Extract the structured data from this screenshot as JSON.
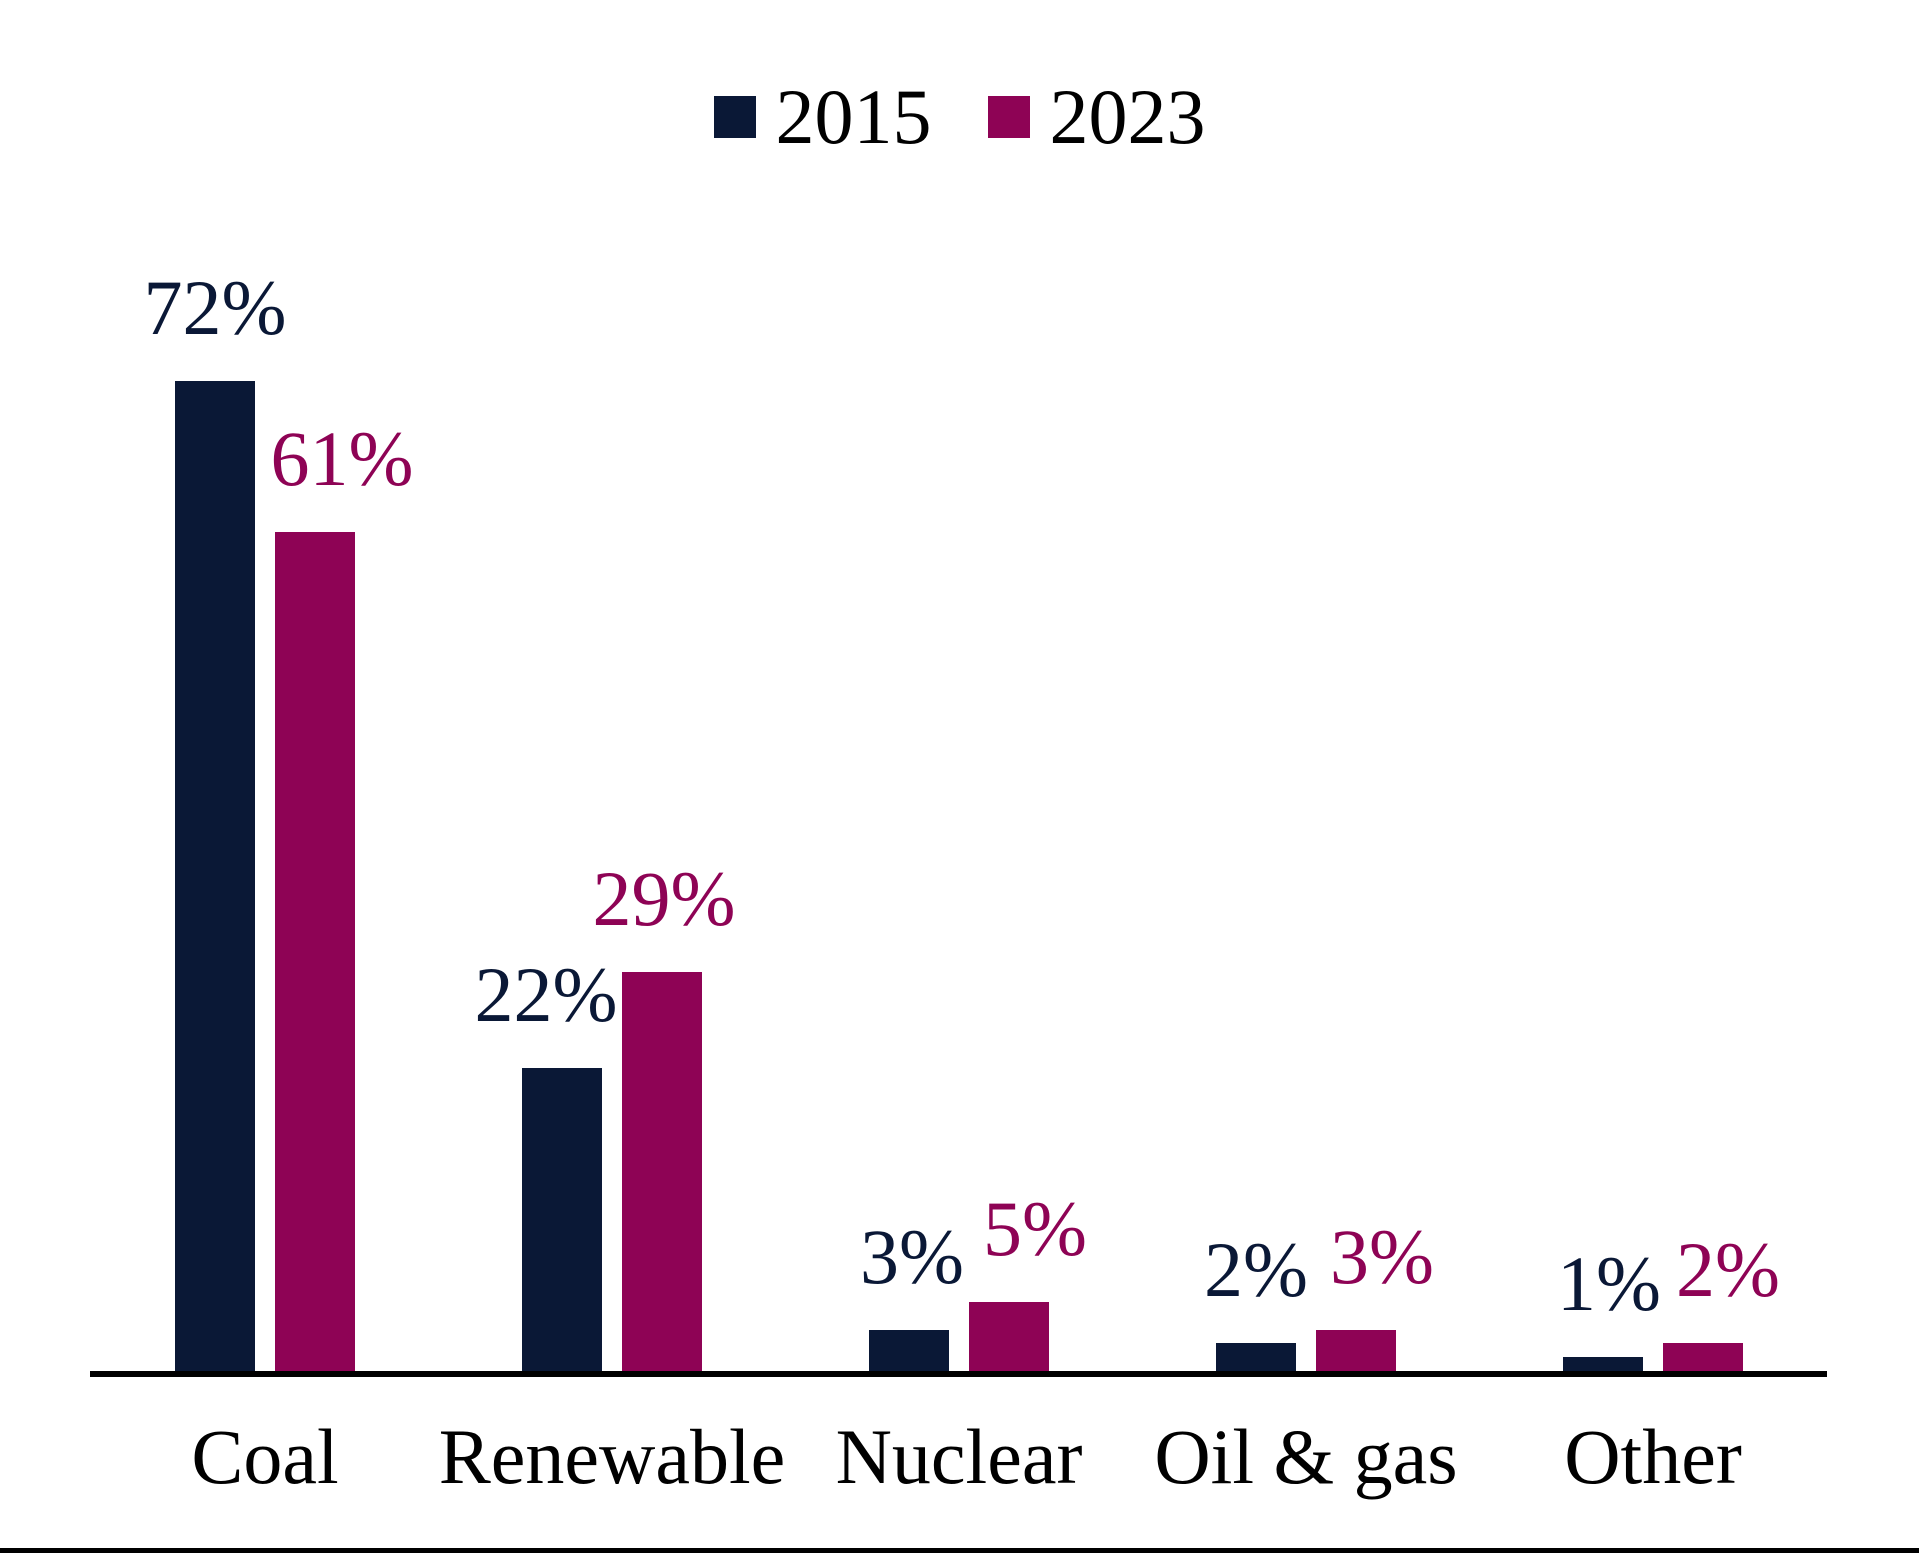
{
  "chart_data": {
    "type": "bar",
    "title": "",
    "categories": [
      "Coal",
      "Renewable",
      "Nuclear",
      "Oil & gas",
      "Other"
    ],
    "series": [
      {
        "name": "2015",
        "color": "#0a1836",
        "values": [
          72,
          22,
          3,
          2,
          1
        ],
        "labels": [
          "72%",
          "22%",
          "3%",
          "2%",
          "1%"
        ]
      },
      {
        "name": "2023",
        "color": "#8e0355",
        "values": [
          61,
          29,
          5,
          3,
          2
        ],
        "labels": [
          "61%",
          "29%",
          "5%",
          "3%",
          "2%"
        ]
      }
    ],
    "value_suffix": "%",
    "ylim": [
      0,
      80
    ],
    "grid": false,
    "legend_position": "top",
    "data_labels": "outside-end",
    "axis_color": "#000000",
    "label_text_colors_follow_series": true,
    "category_text_color": "#000000",
    "legend_text_color": "#000000",
    "background": "#ffffff"
  }
}
